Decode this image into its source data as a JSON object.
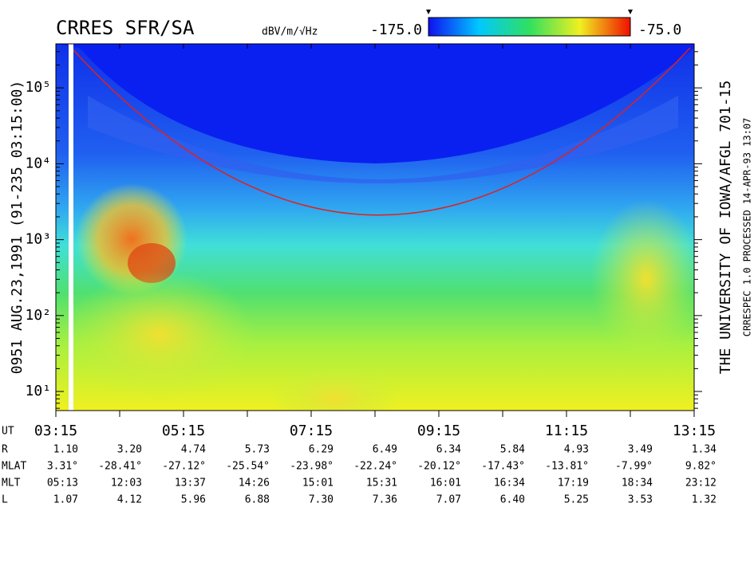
{
  "chart_data": {
    "type": "spectrogram",
    "title": "CRRES SFR/SA",
    "left_label": "0951  AUG.23,1991  (91-235 03:15:00)",
    "right_label": "THE UNIVERSITY OF IOWA/AFGL 701-15",
    "footer_label": "CRRESPEC 1.0  PROCESSED 14-APR-93  13:07",
    "log_y": true,
    "ylim": [
      5.6,
      380000
    ],
    "yticks": [
      {
        "value": 10,
        "label": "10¹"
      },
      {
        "value": 100,
        "label": "10²"
      },
      {
        "value": 1000,
        "label": "10³"
      },
      {
        "value": 10000,
        "label": "10⁴"
      },
      {
        "value": 100000,
        "label": "10⁵"
      }
    ],
    "categories": [
      "03:15",
      null,
      "05:15",
      null,
      "07:15",
      null,
      "09:15",
      null,
      "11:15",
      null,
      "13:15"
    ],
    "colorbar": {
      "label": "dBV/m/√Hz",
      "lim": [
        {
          "value": -175,
          "label": "-175.0"
        },
        {
          "value": -75,
          "label": "-75.0"
        }
      ],
      "colors": [
        "#1010f0",
        "#00c8ff",
        "#30e060",
        "#f0f020",
        "#f01000"
      ]
    },
    "ephemeris": [
      {
        "label": "UT"
      },
      {
        "label": "R",
        "values": [
          "1.10",
          "3.20",
          "4.74",
          "5.73",
          "6.29",
          "6.49",
          "6.34",
          "5.84",
          "4.93",
          "3.49",
          "1.34"
        ]
      },
      {
        "label": "MLAT",
        "values": [
          "3.31°",
          "-28.41°",
          "-27.12°",
          "-25.54°",
          "-23.98°",
          "-22.24°",
          "-20.12°",
          "-17.43°",
          "-13.81°",
          "-7.99°",
          "9.82°"
        ]
      },
      {
        "label": "MLT",
        "values": [
          "05:13",
          "12:03",
          "13:37",
          "14:26",
          "15:01",
          "15:31",
          "16:01",
          "16:34",
          "17:19",
          "18:34",
          "23:12"
        ]
      },
      {
        "label": "L",
        "values": [
          "1.07",
          "4.12",
          "5.96",
          "6.88",
          "7.30",
          "7.36",
          "7.07",
          "6.40",
          "5.25",
          "3.53",
          "1.32"
        ]
      }
    ]
  }
}
